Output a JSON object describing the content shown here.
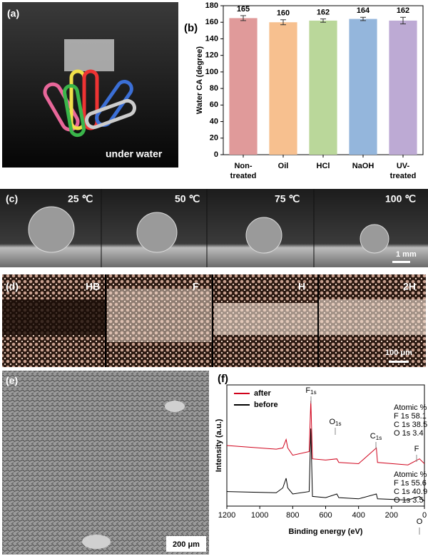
{
  "chart_data": [
    {
      "type": "bar",
      "ylabel": "Water CA (degree)",
      "categories": [
        "Non-treated",
        "Oil",
        "HCl",
        "NaOH",
        "UV-treated"
      ],
      "values": [
        165,
        160,
        162,
        164,
        162
      ],
      "errors": [
        3,
        3,
        2,
        2,
        4
      ],
      "colors": [
        "#e09a9a",
        "#f7c08f",
        "#bad79a",
        "#94b6dc",
        "#bdaad4"
      ],
      "ylim": [
        0,
        180
      ],
      "yticks": [
        0,
        20,
        40,
        60,
        80,
        100,
        120,
        140,
        160,
        180
      ]
    },
    {
      "type": "line",
      "xlabel": "Binding energy (eV)",
      "ylabel": "Intensity (a.u.)",
      "x": [
        1200,
        900,
        860,
        840,
        830,
        800,
        700,
        690,
        680,
        600,
        532,
        520,
        400,
        292,
        285,
        100,
        30,
        0
      ],
      "xlim": [
        1200,
        0
      ],
      "xticks": [
        1200,
        1000,
        800,
        600,
        400,
        200,
        0
      ],
      "ylim": [
        0,
        100
      ],
      "legend": "upper left",
      "series": [
        {
          "name": "after",
          "color": "#d0021b",
          "values": [
            50,
            47,
            48,
            55,
            48,
            42,
            45,
            87,
            39,
            38,
            39,
            36,
            35,
            48,
            36,
            34,
            39,
            35
          ]
        },
        {
          "name": "before",
          "color": "#000000",
          "values": [
            12,
            11,
            15,
            23,
            15,
            10,
            12,
            64,
            8,
            7,
            10,
            7,
            6,
            10,
            6,
            5,
            8,
            4
          ]
        }
      ],
      "annotations": [
        {
          "text": "F",
          "sub": "1s"
        },
        {
          "text": "O",
          "sub": "1s"
        },
        {
          "text": "C",
          "sub": "1s"
        },
        {
          "text": "F"
        },
        {
          "text": "O"
        }
      ],
      "composition": [
        {
          "title": "Atomic %",
          "color": "#d0021b",
          "lines": [
            "F 1s 58.1",
            "C 1s 38.5",
            "O 1s 3.4"
          ]
        },
        {
          "title": "Atomic %",
          "color": "#000000",
          "lines": [
            "F 1s 55.6",
            "C 1s 40.9",
            "O 1s 3.5"
          ]
        }
      ]
    }
  ],
  "figure": {
    "panel_labels": [
      "(a)",
      "(b)",
      "(c)",
      "(d)",
      "(e)",
      "(f)"
    ],
    "panel_a": {
      "caption": "under water"
    },
    "panel_c": {
      "labels": [
        "25 ℃",
        "50 ℃",
        "75 ℃",
        "100 ℃"
      ],
      "scale_bar": "1 mm"
    },
    "panel_d": {
      "labels": [
        "HB",
        "F",
        "H",
        "2H"
      ],
      "scale_bar": "100 μm"
    },
    "panel_e": {
      "scale_bar": "200 μm"
    }
  }
}
